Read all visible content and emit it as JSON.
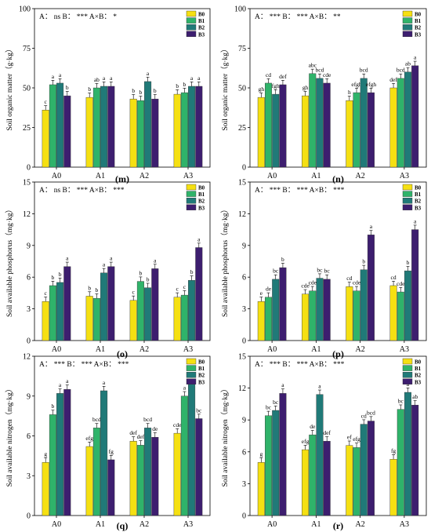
{
  "figure": {
    "categories": [
      "A0",
      "A1",
      "A2",
      "A3"
    ],
    "series_names": [
      "B0",
      "B1",
      "B2",
      "B3"
    ],
    "colors": {
      "B0": "#f5e012",
      "B1": "#2fb36a",
      "B2": "#207a78",
      "B3": "#3d1e6f"
    }
  },
  "chart_data": [
    {
      "type": "bar",
      "panel": "(m)",
      "ylabel": "Soil organic matter（g·kg）",
      "ylim": [
        0,
        100
      ],
      "yticks": [
        0,
        25,
        50,
        75,
        100
      ],
      "stats": "A： ns  B： ***  A×B： *",
      "categories": [
        "A0",
        "A1",
        "A2",
        "A3"
      ],
      "series": [
        {
          "name": "B0",
          "values": [
            36,
            44,
            43,
            46
          ],
          "labels": [
            "c",
            "b",
            "b",
            "b"
          ]
        },
        {
          "name": "B1",
          "values": [
            52,
            50,
            42,
            47
          ],
          "labels": [
            "a",
            "ab",
            "b",
            "b"
          ]
        },
        {
          "name": "B2",
          "values": [
            53,
            51,
            54,
            51
          ],
          "labels": [
            "a",
            "a",
            "a",
            "a"
          ]
        },
        {
          "name": "B3",
          "values": [
            45,
            51,
            43,
            51
          ],
          "labels": [
            "b",
            "a",
            "b",
            "a"
          ]
        }
      ]
    },
    {
      "type": "bar",
      "panel": "(n)",
      "ylabel": "Soil organic matter（g·kg）",
      "ylim": [
        0,
        100
      ],
      "yticks": [
        0,
        25,
        50,
        75,
        100
      ],
      "stats": "A： ***  B： ***  A×B： **",
      "categories": [
        "A0",
        "A1",
        "A2",
        "A3"
      ],
      "series": [
        {
          "name": "B0",
          "values": [
            44,
            45,
            42,
            50
          ],
          "labels": [
            "gh",
            "gh",
            "h",
            "def"
          ]
        },
        {
          "name": "B1",
          "values": [
            53,
            59,
            47,
            56
          ],
          "labels": [
            "cd",
            "abc",
            "efgh",
            "bcd"
          ]
        },
        {
          "name": "B2",
          "values": [
            46,
            56,
            56,
            60
          ],
          "labels": [
            "fgh",
            "bcd",
            "bcd",
            "ab"
          ]
        },
        {
          "name": "B3",
          "values": [
            52,
            53,
            47,
            64
          ],
          "labels": [
            "def",
            "cde",
            "efgh",
            "a"
          ]
        }
      ]
    },
    {
      "type": "bar",
      "panel": "(o)",
      "ylabel": "Soil available phosphorus（mg·kg）",
      "ylim": [
        0,
        15
      ],
      "yticks": [
        0,
        3,
        6,
        9,
        12,
        15
      ],
      "stats": "A： ns  B： ***  A×B： ***",
      "categories": [
        "A0",
        "A1",
        "A2",
        "A3"
      ],
      "series": [
        {
          "name": "B0",
          "values": [
            3.7,
            4.2,
            3.8,
            4.1
          ],
          "labels": [
            "c",
            "b",
            "c",
            "c"
          ]
        },
        {
          "name": "B1",
          "values": [
            5.2,
            4.0,
            5.6,
            4.3
          ],
          "labels": [
            "b",
            "b",
            "b",
            "c"
          ]
        },
        {
          "name": "B2",
          "values": [
            5.5,
            6.4,
            5.0,
            5.7
          ],
          "labels": [
            "b",
            "a",
            "b",
            "b"
          ]
        },
        {
          "name": "B3",
          "values": [
            7.0,
            7.0,
            6.8,
            8.8
          ],
          "labels": [
            "a",
            "a",
            "a",
            "a"
          ]
        }
      ]
    },
    {
      "type": "bar",
      "panel": "(p)",
      "ylabel": "Soil available phosphorus（mg·kg）",
      "ylim": [
        0,
        15
      ],
      "yticks": [
        0,
        3,
        6,
        9,
        12,
        15
      ],
      "stats": "A： ***  B： ***  A×B： ***",
      "categories": [
        "A0",
        "A1",
        "A2",
        "A3"
      ],
      "series": [
        {
          "name": "B0",
          "values": [
            3.7,
            4.4,
            5.1,
            5.2
          ],
          "labels": [
            "e",
            "cde",
            "cd",
            "cd"
          ]
        },
        {
          "name": "B1",
          "values": [
            4.1,
            4.7,
            4.7,
            4.6
          ],
          "labels": [
            "de",
            "cde",
            "cde",
            "cde"
          ]
        },
        {
          "name": "B2",
          "values": [
            5.8,
            5.9,
            6.7,
            6.6
          ],
          "labels": [
            "bc",
            "bc",
            "b",
            "b"
          ]
        },
        {
          "name": "B3",
          "values": [
            6.9,
            5.8,
            10.0,
            10.5
          ],
          "labels": [
            "b",
            "bc",
            "a",
            "a"
          ]
        }
      ]
    },
    {
      "type": "bar",
      "panel": "(q)",
      "ylabel": "Soil available nitrogen（mg·kg）",
      "ylim": [
        0,
        12
      ],
      "yticks": [
        0,
        3,
        6,
        9,
        12
      ],
      "stats": "A： ***  B： ***  A×B： ***",
      "categories": [
        "A0",
        "A1",
        "A2",
        "A3"
      ],
      "series": [
        {
          "name": "B0",
          "values": [
            4.0,
            5.2,
            5.6,
            6.2
          ],
          "labels": [
            "g",
            "efg",
            "def",
            "cde"
          ]
        },
        {
          "name": "B1",
          "values": [
            7.6,
            6.6,
            5.3,
            9.0
          ],
          "labels": [
            "b",
            "bcd",
            "def",
            "a"
          ]
        },
        {
          "name": "B2",
          "values": [
            9.2,
            9.4,
            6.6,
            9.9
          ],
          "labels": [
            "a",
            "a",
            "bcd",
            "a"
          ]
        },
        {
          "name": "B3",
          "values": [
            9.5,
            4.2,
            5.9,
            7.3
          ],
          "labels": [
            "a",
            "fg",
            "de",
            "bc"
          ]
        }
      ]
    },
    {
      "type": "bar",
      "panel": "(r)",
      "ylabel": "Soil available nitrogen（mg·kg）",
      "ylim": [
        0,
        15
      ],
      "yticks": [
        0,
        3,
        6,
        9,
        12,
        15
      ],
      "stats": "A： ***  B： ***  A×B： ***",
      "categories": [
        "A0",
        "A1",
        "A2",
        "A3"
      ],
      "series": [
        {
          "name": "B0",
          "values": [
            5.0,
            6.2,
            6.6,
            5.3
          ],
          "labels": [
            "g",
            "efg",
            "ef",
            "fg"
          ]
        },
        {
          "name": "B1",
          "values": [
            9.4,
            7.6,
            6.4,
            10.0
          ],
          "labels": [
            "bc",
            "de",
            "efg",
            "bc"
          ]
        },
        {
          "name": "B2",
          "values": [
            9.9,
            11.4,
            8.6,
            11.6
          ],
          "labels": [
            "bc",
            "a",
            "cd",
            "a"
          ]
        },
        {
          "name": "B3",
          "values": [
            11.5,
            7.0,
            8.9,
            10.4
          ],
          "labels": [
            "a",
            "def",
            "bcd",
            "ab"
          ]
        }
      ]
    }
  ]
}
